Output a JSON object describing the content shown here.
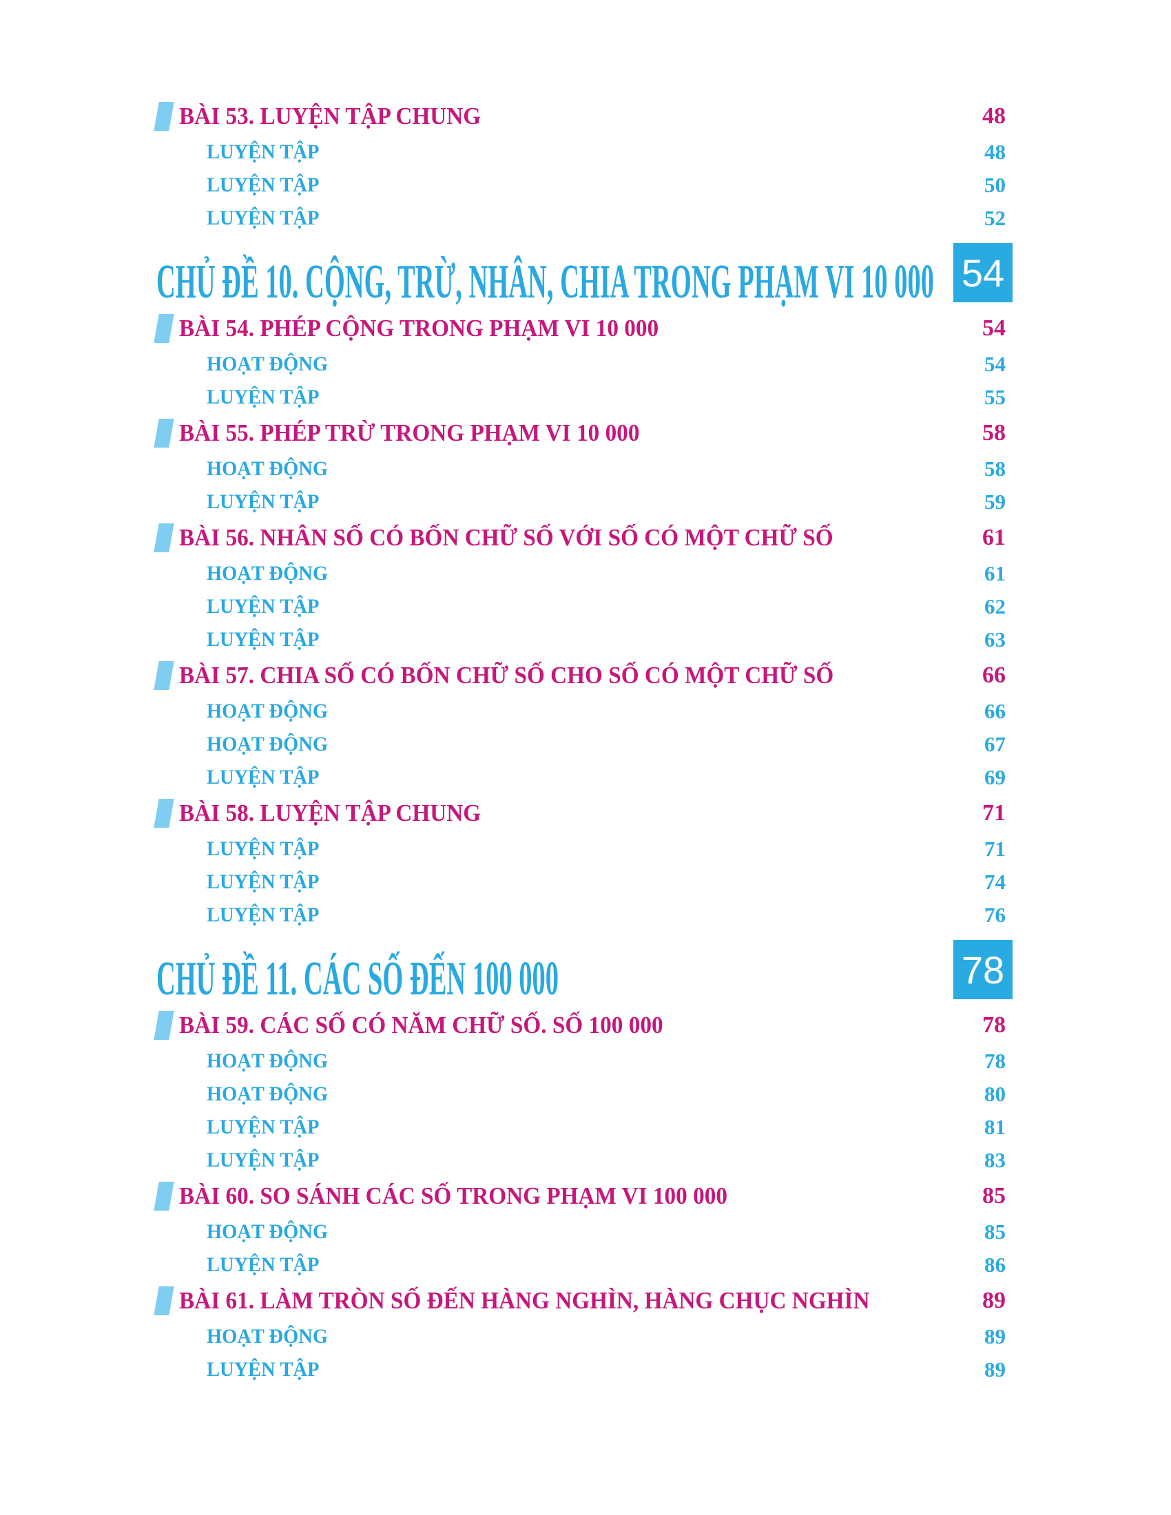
{
  "document": {
    "kind": "table-of-contents-page",
    "language": "vi"
  },
  "colors": {
    "magenta": "#c6177c",
    "cyan": "#2aa9e0",
    "marker_blue": "#7fcdf0",
    "box_blue": "#29abe2",
    "box_text": "#ffffff",
    "page_background": "#ffffff"
  },
  "toc": {
    "items": [
      {
        "type": "lesson",
        "label": "BÀI 53. LUYỆN TẬP CHUNG",
        "page": "48"
      },
      {
        "type": "sub",
        "label": "LUYỆN TẬP",
        "page": "48"
      },
      {
        "type": "sub",
        "label": "LUYỆN TẬP",
        "page": "50"
      },
      {
        "type": "sub",
        "label": "LUYỆN TẬP",
        "page": "52"
      },
      {
        "type": "chapter",
        "label": "CHỦ ĐỀ 10. CỘNG, TRỪ, NHÂN, CHIA TRONG PHẠM VI 10 000",
        "page": "54"
      },
      {
        "type": "lesson",
        "label": "BÀI 54. PHÉP CỘNG TRONG PHẠM VI 10 000",
        "page": "54"
      },
      {
        "type": "sub",
        "label": "HOẠT ĐỘNG",
        "page": "54"
      },
      {
        "type": "sub",
        "label": "LUYỆN TẬP",
        "page": "55"
      },
      {
        "type": "lesson",
        "label": "BÀI 55. PHÉP TRỪ TRONG PHẠM VI 10 000",
        "page": "58"
      },
      {
        "type": "sub",
        "label": "HOẠT ĐỘNG",
        "page": "58"
      },
      {
        "type": "sub",
        "label": "LUYỆN TẬP",
        "page": "59"
      },
      {
        "type": "lesson",
        "label": "BÀI 56. NHÂN SỐ CÓ BỐN CHỮ SỐ VỚI SỐ CÓ MỘT CHỮ SỐ",
        "page": "61"
      },
      {
        "type": "sub",
        "label": "HOẠT ĐỘNG",
        "page": "61"
      },
      {
        "type": "sub",
        "label": "LUYỆN TẬP",
        "page": "62"
      },
      {
        "type": "sub",
        "label": "LUYỆN TẬP",
        "page": "63"
      },
      {
        "type": "lesson",
        "label": "BÀI 57. CHIA SỐ CÓ BỐN CHỮ SỐ CHO SỐ CÓ MỘT CHỮ SỐ",
        "page": "66"
      },
      {
        "type": "sub",
        "label": "HOẠT ĐỘNG",
        "page": "66"
      },
      {
        "type": "sub",
        "label": "HOẠT ĐỘNG",
        "page": "67"
      },
      {
        "type": "sub",
        "label": "LUYỆN TẬP",
        "page": "69"
      },
      {
        "type": "lesson",
        "label": "BÀI 58. LUYỆN TẬP CHUNG",
        "page": "71"
      },
      {
        "type": "sub",
        "label": "LUYỆN TẬP",
        "page": "71"
      },
      {
        "type": "sub",
        "label": "LUYỆN TẬP",
        "page": "74"
      },
      {
        "type": "sub",
        "label": "LUYỆN TẬP",
        "page": "76"
      },
      {
        "type": "chapter",
        "label": "CHỦ ĐỀ 11. CÁC SỐ ĐẾN 100 000",
        "page": "78"
      },
      {
        "type": "lesson",
        "label": "BÀI 59. CÁC SỐ CÓ NĂM CHỮ SỐ. SỐ 100 000",
        "page": "78"
      },
      {
        "type": "sub",
        "label": "HOẠT ĐỘNG",
        "page": "78"
      },
      {
        "type": "sub",
        "label": "HOẠT ĐỘNG",
        "page": "80"
      },
      {
        "type": "sub",
        "label": "LUYỆN TẬP",
        "page": "81"
      },
      {
        "type": "sub",
        "label": "LUYỆN TẬP",
        "page": "83"
      },
      {
        "type": "lesson",
        "label": "BÀI 60. SO SÁNH CÁC SỐ TRONG PHẠM VI 100 000",
        "page": "85"
      },
      {
        "type": "sub",
        "label": "HOẠT ĐỘNG",
        "page": "85"
      },
      {
        "type": "sub",
        "label": "LUYỆN TẬP",
        "page": "86"
      },
      {
        "type": "lesson",
        "label": "BÀI 61. LÀM TRÒN SỐ ĐẾN HÀNG NGHÌN, HÀNG CHỤC NGHÌN",
        "page": "89"
      },
      {
        "type": "sub",
        "label": "HOẠT ĐỘNG",
        "page": "89"
      },
      {
        "type": "sub",
        "label": "LUYỆN TẬP",
        "page": "89"
      }
    ]
  }
}
